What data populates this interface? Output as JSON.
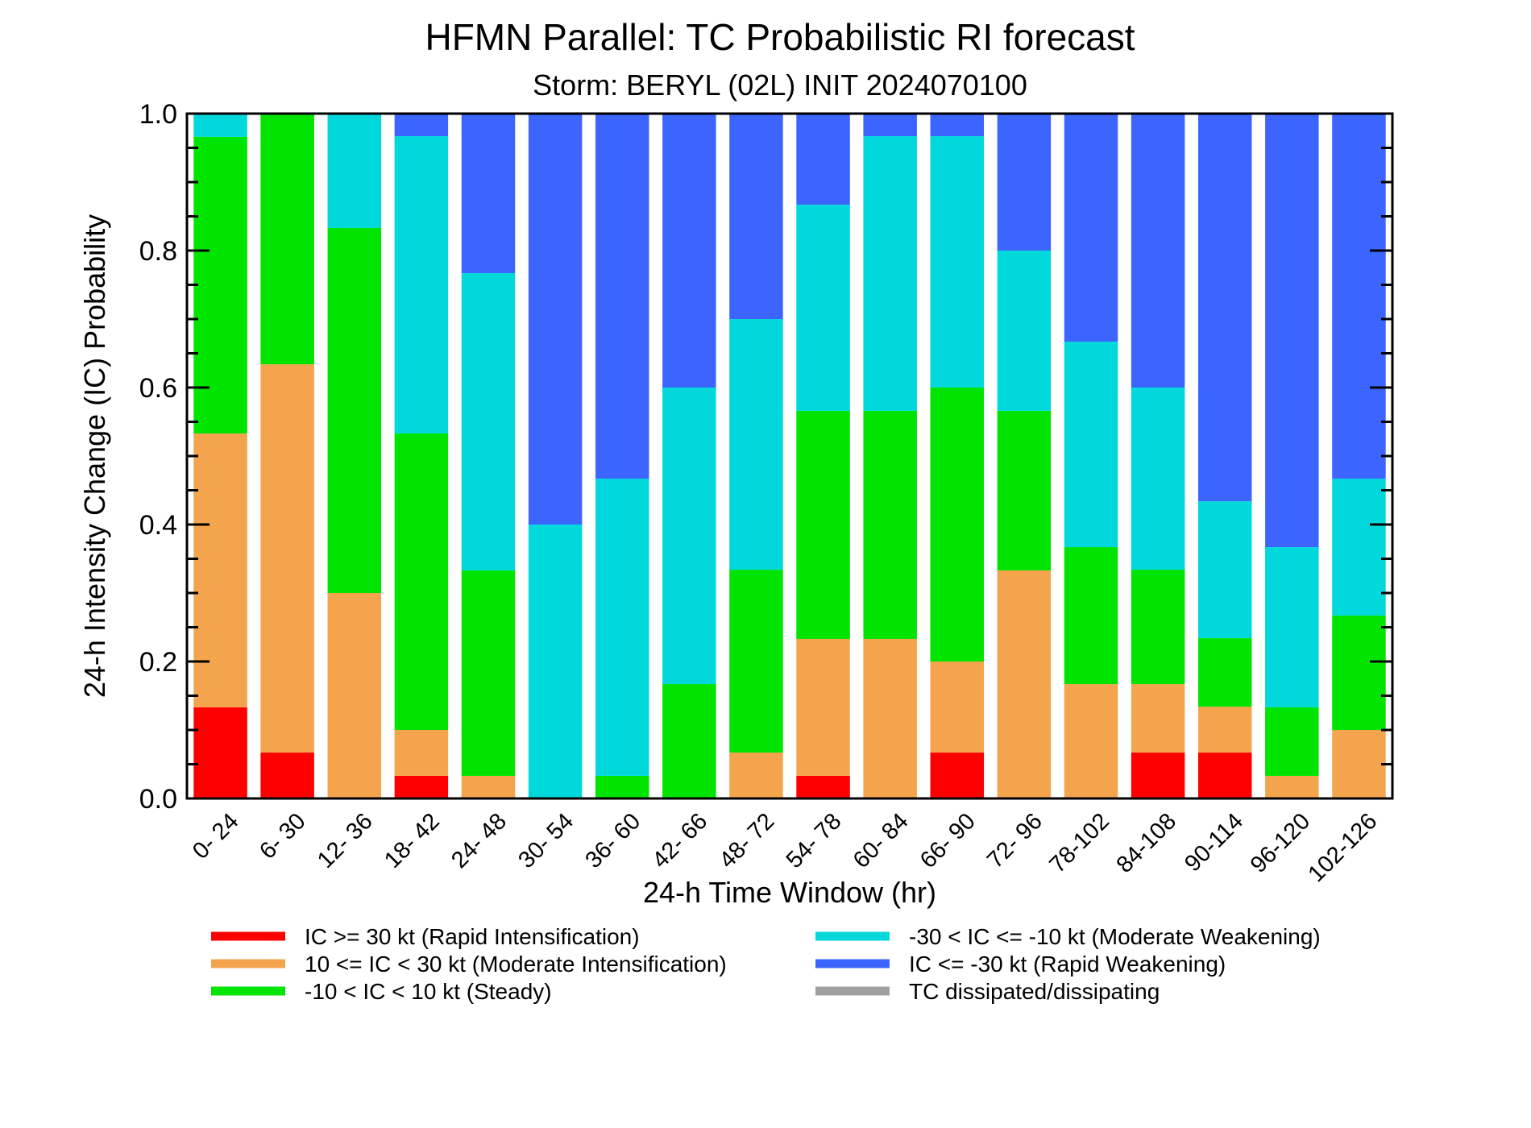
{
  "chart_data": {
    "type": "bar",
    "stacked": true,
    "title": "HFMN Parallel: TC Probabilistic RI forecast",
    "subtitle": "Storm: BERYL (02L) INIT 2024070100",
    "xlabel": "24-h Time Window (hr)",
    "ylabel": "24-h Intensity Change (IC) Probability",
    "ylim": [
      0,
      1
    ],
    "yticks": [
      "0.0",
      "0.2",
      "0.4",
      "0.6",
      "0.8",
      "1.0"
    ],
    "ytick_values": [
      0,
      0.2,
      0.4,
      0.6,
      0.8,
      1.0
    ],
    "categories": [
      "0- 24",
      "6- 30",
      "12- 36",
      "18- 42",
      "24- 48",
      "30- 54",
      "36- 60",
      "42- 66",
      "48- 72",
      "54- 78",
      "60- 84",
      "66- 90",
      "72- 96",
      "78-102",
      "84-108",
      "90-114",
      "96-120",
      "102-126"
    ],
    "series": [
      {
        "name": "IC >= 30 kt (Rapid Intensification)",
        "color": "#ff0000",
        "values": [
          0.133,
          0.067,
          0,
          0.033,
          0,
          0,
          0,
          0,
          0,
          0.033,
          0,
          0.067,
          0,
          0,
          0.067,
          0.067,
          0,
          0
        ]
      },
      {
        "name": "10 <= IC < 30 kt (Moderate Intensification)",
        "color": "#f4a44c",
        "values": [
          0.4,
          0.567,
          0.3,
          0.067,
          0.033,
          0,
          0,
          0,
          0.067,
          0.2,
          0.233,
          0.133,
          0.333,
          0.167,
          0.1,
          0.067,
          0.033,
          0.1
        ]
      },
      {
        "name": "-10 < IC < 10 kt (Steady)",
        "color": "#00e400",
        "values": [
          0.433,
          0.367,
          0.533,
          0.433,
          0.3,
          0,
          0.033,
          0.167,
          0.267,
          0.333,
          0.333,
          0.4,
          0.233,
          0.2,
          0.167,
          0.1,
          0.1,
          0.167
        ]
      },
      {
        "name": "-30 < IC <= -10 kt (Moderate Weakening)",
        "color": "#00d8dc",
        "values": [
          0.034,
          0,
          0.167,
          0.434,
          0.434,
          0.4,
          0.434,
          0.433,
          0.366,
          0.301,
          0.401,
          0.367,
          0.234,
          0.3,
          0.266,
          0.2,
          0.234,
          0.2
        ]
      },
      {
        "name": "IC <= -30 kt (Rapid Weakening)",
        "color": "#3c64ff",
        "values": [
          0,
          0,
          0,
          0.033,
          0.233,
          0.6,
          0.533,
          0.4,
          0.3,
          0.133,
          0.033,
          0.033,
          0.2,
          0.333,
          0.4,
          0.566,
          0.633,
          0.533
        ]
      },
      {
        "name": "TC dissipated/dissipating",
        "color": "#a0a0a0",
        "values": [
          0,
          0,
          0,
          0,
          0,
          0,
          0,
          0,
          0,
          0,
          0,
          0,
          0,
          0,
          0,
          0,
          0,
          0
        ]
      }
    ],
    "legend_position": "bottom",
    "grid": false
  }
}
